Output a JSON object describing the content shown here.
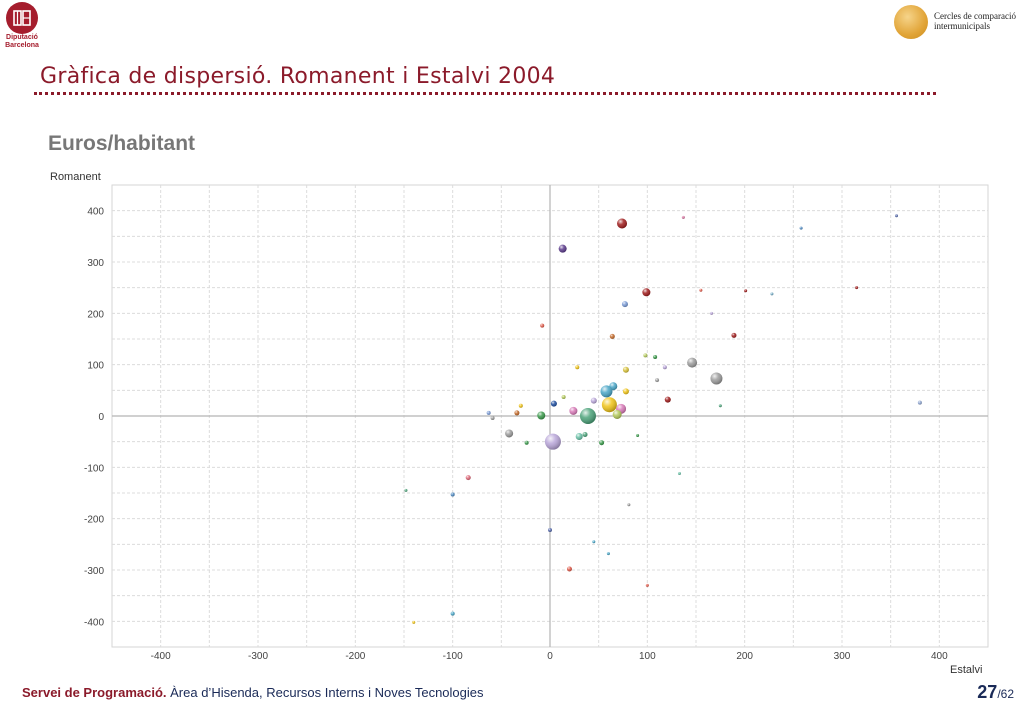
{
  "header": {
    "left_logo_text": [
      "Diputació",
      "Barcelona"
    ],
    "right_logo_text": [
      "Cercles de comparació",
      "intermunicipals"
    ]
  },
  "slide": {
    "title": "Gràfica de dispersió. Romanent i Estalvi 2004",
    "subtitle": "Euros/habitant"
  },
  "footer": {
    "org": "Servei de Programació.",
    "dept": " Àrea d’Hisenda, Recursos Interns i Noves Tecnologies",
    "page": "27",
    "total": "/62"
  },
  "chart_data": {
    "type": "scatter",
    "xlabel": "Estalvi",
    "ylabel": "Romanent",
    "xlim": [
      -450,
      450
    ],
    "ylim": [
      -450,
      450
    ],
    "xticks": [
      -400,
      -300,
      -200,
      -100,
      0,
      100,
      200,
      300,
      400
    ],
    "yticks": [
      400,
      300,
      200,
      100,
      0,
      -100,
      -200,
      -300,
      -400
    ],
    "grid": true,
    "points": [
      {
        "x": 74,
        "y": 375,
        "s": 5,
        "color": "#a01c1c"
      },
      {
        "x": 13,
        "y": 326,
        "s": 4,
        "color": "#5b3a8c"
      },
      {
        "x": 99,
        "y": 241,
        "s": 4,
        "color": "#a01c1c"
      },
      {
        "x": 77,
        "y": 218,
        "s": 3,
        "color": "#7a9bd6"
      },
      {
        "x": 146,
        "y": 104,
        "s": 5,
        "color": "#9c9c9c"
      },
      {
        "x": 171,
        "y": 73,
        "s": 6,
        "color": "#9c9c9c"
      },
      {
        "x": 380,
        "y": 26,
        "s": 2,
        "color": "#8fa6d1"
      },
      {
        "x": 356,
        "y": 390,
        "s": 1.5,
        "color": "#5b6fb0"
      },
      {
        "x": 137,
        "y": 387,
        "s": 1.5,
        "color": "#d675a0"
      },
      {
        "x": 258,
        "y": 366,
        "s": 1.5,
        "color": "#4f8ac2"
      },
      {
        "x": 315,
        "y": 250,
        "s": 1.5,
        "color": "#a01c1c"
      },
      {
        "x": 189,
        "y": 157,
        "s": 2.5,
        "color": "#a01c1c"
      },
      {
        "x": 201,
        "y": 244,
        "s": 1.5,
        "color": "#a01c1c"
      },
      {
        "x": 228,
        "y": 238,
        "s": 1.5,
        "color": "#7ab0c9"
      },
      {
        "x": 121,
        "y": 32,
        "s": 3,
        "color": "#a01c1c"
      },
      {
        "x": 65,
        "y": 58,
        "s": 4,
        "color": "#49a6c7"
      },
      {
        "x": 58,
        "y": 48,
        "s": 6,
        "color": "#49a6c7"
      },
      {
        "x": 61,
        "y": 22,
        "s": 7.5,
        "color": "#f0c419"
      },
      {
        "x": 39,
        "y": 0,
        "s": 8,
        "color": "#4ca37a"
      },
      {
        "x": 73,
        "y": 14,
        "s": 5,
        "color": "#d87ab8"
      },
      {
        "x": 69,
        "y": 3,
        "s": 4.5,
        "color": "#b3c95a"
      },
      {
        "x": 24,
        "y": 10,
        "s": 4,
        "color": "#d87ab8"
      },
      {
        "x": 3,
        "y": -50,
        "s": 8,
        "color": "#b9a6d9"
      },
      {
        "x": -42,
        "y": -34,
        "s": 4,
        "color": "#9c9c9c"
      },
      {
        "x": -9,
        "y": 1,
        "s": 4,
        "color": "#3a9a4b"
      },
      {
        "x": 4,
        "y": 24,
        "s": 3,
        "color": "#1e4ea0"
      },
      {
        "x": 78,
        "y": 90,
        "s": 3,
        "color": "#d8c23a"
      },
      {
        "x": 64,
        "y": 155,
        "s": 2.5,
        "color": "#c46a2a"
      },
      {
        "x": 20,
        "y": -298,
        "s": 2.5,
        "color": "#e05a4a"
      },
      {
        "x": 78,
        "y": 48,
        "s": 3,
        "color": "#f0c419"
      },
      {
        "x": 30,
        "y": -40,
        "s": 3.5,
        "color": "#6bc2a8"
      },
      {
        "x": 36,
        "y": -36,
        "s": 2.5,
        "color": "#4ca37a"
      },
      {
        "x": -34,
        "y": 6,
        "s": 2.5,
        "color": "#c46a2a"
      },
      {
        "x": -100,
        "y": -385,
        "s": 2,
        "color": "#49a6c7"
      },
      {
        "x": 0,
        "y": -222,
        "s": 2,
        "color": "#5b6fb0"
      },
      {
        "x": -84,
        "y": -120,
        "s": 2.5,
        "color": "#e06a7a"
      },
      {
        "x": -100,
        "y": -153,
        "s": 2,
        "color": "#4f8ac2"
      },
      {
        "x": -59,
        "y": -4,
        "s": 2,
        "color": "#9c9c9c"
      },
      {
        "x": -63,
        "y": 6,
        "s": 2,
        "color": "#7a9bd6"
      },
      {
        "x": -8,
        "y": 176,
        "s": 2,
        "color": "#e05a4a"
      },
      {
        "x": 45,
        "y": 30,
        "s": 3,
        "color": "#b9a6d9"
      },
      {
        "x": 53,
        "y": -52,
        "s": 2.5,
        "color": "#3a9a4b"
      },
      {
        "x": 110,
        "y": 70,
        "s": 2,
        "color": "#a3a3a3"
      },
      {
        "x": 118,
        "y": 95,
        "s": 2,
        "color": "#b9a6d9"
      },
      {
        "x": 133,
        "y": -112,
        "s": 1.5,
        "color": "#6bc2a8"
      },
      {
        "x": 166,
        "y": 200,
        "s": 1.5,
        "color": "#b9a6d9"
      },
      {
        "x": 100,
        "y": -330,
        "s": 1.5,
        "color": "#e05a4a"
      },
      {
        "x": 60,
        "y": -268,
        "s": 1.5,
        "color": "#49a6c7"
      },
      {
        "x": 45,
        "y": -245,
        "s": 1.5,
        "color": "#49a6c7"
      },
      {
        "x": -140,
        "y": -402,
        "s": 1.5,
        "color": "#f0c419"
      },
      {
        "x": -148,
        "y": -145,
        "s": 1.5,
        "color": "#4ca37a"
      },
      {
        "x": 81,
        "y": -173,
        "s": 1.5,
        "color": "#9c9c9c"
      },
      {
        "x": 90,
        "y": -38,
        "s": 1.5,
        "color": "#3a9a4b"
      },
      {
        "x": -24,
        "y": -52,
        "s": 2,
        "color": "#3a9a4b"
      },
      {
        "x": -30,
        "y": 20,
        "s": 2,
        "color": "#f0c419"
      },
      {
        "x": 14,
        "y": 37,
        "s": 2,
        "color": "#b3c95a"
      },
      {
        "x": 28,
        "y": 95,
        "s": 2,
        "color": "#f0c419"
      },
      {
        "x": 98,
        "y": 118,
        "s": 2,
        "color": "#b3c95a"
      },
      {
        "x": 108,
        "y": 115,
        "s": 2,
        "color": "#3a9a4b"
      },
      {
        "x": 155,
        "y": 245,
        "s": 1.5,
        "color": "#e05a4a"
      },
      {
        "x": 175,
        "y": 20,
        "s": 1.5,
        "color": "#4ca37a"
      }
    ]
  }
}
